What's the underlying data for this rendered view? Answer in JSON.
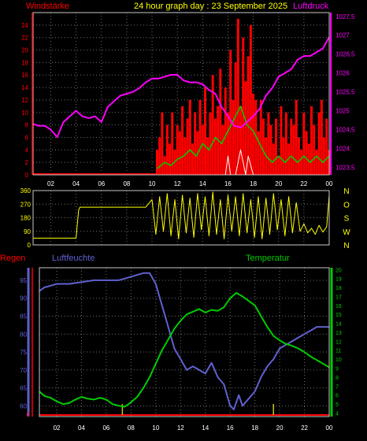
{
  "header": {
    "title": "24 hour graph day : 23 September 2025",
    "left_label": "Windstärke",
    "right_label": "Luftdruck"
  },
  "x_ticks": [
    "02",
    "04",
    "06",
    "08",
    "10",
    "12",
    "14",
    "16",
    "18",
    "20",
    "22",
    "00"
  ],
  "colors": {
    "background": "#000000",
    "frame": "#c8c8c8",
    "grid": "#707070",
    "wind": "#ff0000",
    "wind_avg": "#00d000",
    "wind_low": "#ffffff",
    "pressure": "#ff00ff",
    "direction": "#ffff00",
    "humidity": "#6060d0",
    "temperature": "#00cc00",
    "rain": "#ff0000",
    "rain_event": "#c8c800"
  },
  "chart_data": [
    {
      "type": "line",
      "name": "wind-pressure",
      "title": "24 hour graph day : 23 September 2025",
      "ylabel": "Windstärke",
      "y2label": "Luftdruck",
      "ylim": [
        0,
        26
      ],
      "y_ticks": [
        0,
        2,
        4,
        6,
        8,
        10,
        12,
        14,
        16,
        18,
        20,
        22,
        24
      ],
      "y2lim": [
        1023.3,
        1027.6
      ],
      "y2_ticks": [
        1023.5,
        1024,
        1024.5,
        1025,
        1025.5,
        1026,
        1026.5,
        1027,
        1027.5
      ],
      "y2_tick_labels": [
        "1023,5",
        "1024",
        "1024,5",
        "1025",
        "1025,5",
        "1026",
        "1026,5",
        "1027",
        "1027,5"
      ],
      "x_hours": [
        0.6,
        24.0
      ],
      "pressure_series": {
        "x": [
          0.6,
          1.0,
          1.5,
          2.0,
          2.5,
          3.0,
          3.5,
          4.0,
          4.5,
          5.0,
          5.5,
          6.0,
          6.5,
          7.0,
          7.5,
          8.0,
          8.5,
          9.0,
          9.5,
          10.0,
          10.5,
          11.0,
          11.5,
          12.0,
          12.5,
          13.0,
          13.5,
          14.0,
          14.5,
          15.0,
          15.5,
          16.0,
          16.5,
          17.0,
          17.5,
          18.0,
          18.5,
          19.0,
          19.5,
          20.0,
          20.5,
          21.0,
          21.5,
          22.0,
          22.5,
          23.0,
          23.5,
          24.0
        ],
        "y": [
          1024.65,
          1024.6,
          1024.6,
          1024.5,
          1024.3,
          1024.7,
          1024.85,
          1025.0,
          1024.85,
          1024.8,
          1024.85,
          1024.7,
          1025.1,
          1025.25,
          1025.4,
          1025.45,
          1025.5,
          1025.6,
          1025.75,
          1025.85,
          1025.85,
          1025.9,
          1025.95,
          1025.95,
          1025.8,
          1025.75,
          1025.75,
          1025.7,
          1025.55,
          1025.45,
          1025.1,
          1024.85,
          1024.6,
          1024.55,
          1024.7,
          1024.85,
          1025.05,
          1025.4,
          1025.6,
          1025.9,
          1026.0,
          1026.1,
          1026.35,
          1026.45,
          1026.45,
          1026.55,
          1026.65,
          1026.95
        ]
      },
      "wind_gust_series": {
        "x": [
          10.4,
          10.6,
          10.8,
          11.0,
          11.2,
          11.4,
          11.6,
          11.8,
          12.0,
          12.2,
          12.4,
          12.6,
          12.8,
          13.0,
          13.2,
          13.4,
          13.6,
          13.8,
          14.0,
          14.2,
          14.4,
          14.6,
          14.8,
          15.0,
          15.2,
          15.4,
          15.6,
          15.8,
          16.0,
          16.2,
          16.4,
          16.6,
          16.8,
          17.0,
          17.2,
          17.4,
          17.6,
          17.8,
          18.0,
          18.2,
          18.4,
          18.6,
          18.8,
          19.0,
          19.2,
          19.4,
          19.6,
          19.8,
          20.0,
          20.2,
          20.4,
          20.6,
          20.8,
          21.0,
          21.2,
          21.4,
          21.6,
          21.8,
          22.0,
          22.2,
          22.4,
          22.6,
          22.8,
          23.0,
          23.2,
          23.4,
          23.6,
          23.8,
          24.0
        ],
        "y": [
          4,
          6,
          10,
          3,
          8,
          5,
          10,
          4,
          8,
          7,
          11,
          6,
          9,
          12,
          5,
          10,
          7,
          12,
          8,
          14,
          6,
          10,
          16,
          9,
          11,
          17,
          8,
          14,
          10,
          20,
          12,
          18,
          25,
          11,
          22,
          15,
          19,
          24,
          13,
          12,
          7,
          12,
          9,
          6,
          10,
          8,
          5,
          9,
          3,
          11,
          6,
          10,
          5,
          9,
          8,
          12,
          6,
          4,
          10,
          7,
          5,
          11,
          8,
          4,
          10,
          12,
          6,
          9,
          4
        ]
      },
      "wind_avg_series": {
        "x": [
          10.4,
          11.0,
          11.5,
          12.0,
          12.5,
          13.0,
          13.5,
          14.0,
          14.5,
          15.0,
          15.5,
          16.0,
          16.5,
          17.0,
          17.5,
          18.0,
          18.5,
          19.0,
          19.5,
          20.0,
          20.5,
          21.0,
          21.5,
          22.0,
          22.5,
          23.0,
          23.5,
          24.0
        ],
        "y": [
          1,
          2,
          1.5,
          2.5,
          3,
          4,
          3,
          5,
          4,
          6,
          5,
          7,
          9,
          11,
          8,
          7,
          5,
          3,
          2,
          3,
          2,
          3,
          2,
          3,
          2,
          3,
          2,
          3
        ]
      },
      "wind_low_series": {
        "x": [
          10.4,
          12.0,
          14.0,
          15.8,
          16.0,
          16.2,
          16.6,
          16.8,
          17.0,
          17.4,
          17.6,
          18.0,
          18.5,
          20.0,
          24.0
        ],
        "y": [
          0,
          0,
          0,
          0,
          3,
          0,
          0,
          2,
          4,
          0,
          3,
          0,
          0,
          0,
          0
        ]
      }
    },
    {
      "type": "line",
      "name": "wind-direction",
      "ylim": [
        0,
        360
      ],
      "y_ticks": [
        0,
        90,
        180,
        270,
        360
      ],
      "y2_tick_labels": [
        "N",
        "W",
        "S",
        "O",
        "N"
      ],
      "x_hours": [
        0.6,
        24.0
      ],
      "direction_series": {
        "x": [
          0.6,
          2.0,
          4.0,
          4.2,
          4.3,
          6.0,
          8.0,
          9.5,
          9.8,
          10.0,
          10.3,
          10.6,
          10.9,
          11.2,
          11.5,
          11.8,
          12.1,
          12.4,
          12.7,
          13.0,
          13.3,
          13.6,
          13.9,
          14.2,
          14.5,
          14.8,
          15.1,
          15.4,
          15.7,
          16.0,
          16.3,
          16.6,
          16.9,
          17.2,
          17.5,
          17.8,
          18.1,
          18.4,
          18.7,
          19.0,
          19.3,
          19.6,
          19.9,
          20.2,
          20.5,
          20.8,
          21.1,
          21.4,
          21.7,
          22.0,
          22.3,
          22.6,
          22.9,
          23.2,
          23.5,
          23.8,
          24.0
        ],
        "y": [
          45,
          45,
          45,
          230,
          250,
          250,
          250,
          250,
          280,
          300,
          70,
          320,
          90,
          340,
          60,
          300,
          40,
          330,
          80,
          310,
          50,
          340,
          100,
          320,
          60,
          350,
          70,
          300,
          40,
          330,
          90,
          320,
          60,
          340,
          80,
          300,
          50,
          320,
          40,
          310,
          70,
          340,
          100,
          300,
          60,
          320,
          80,
          280,
          90,
          140,
          80,
          110,
          70,
          130,
          85,
          120,
          330
        ]
      }
    },
    {
      "type": "line",
      "name": "humidity-temperature",
      "ylabel": "Luftfeuchte",
      "y2label": "Temperatur",
      "rain_label": "Regen",
      "ylim": [
        57,
        98.5
      ],
      "y_ticks": [
        60,
        65,
        70,
        75,
        80,
        85,
        90,
        95
      ],
      "y2lim": [
        3.6,
        20.2
      ],
      "y2_ticks": [
        4,
        5,
        6,
        7,
        8,
        9,
        10,
        11,
        12,
        13,
        14,
        15,
        16,
        17,
        18,
        19,
        20
      ],
      "rain_value": 0,
      "x_hours": [
        0.6,
        24.0
      ],
      "humidity_series": {
        "x": [
          0.6,
          1.0,
          1.5,
          2.0,
          3.0,
          4.0,
          5.0,
          6.0,
          7.0,
          8.0,
          8.5,
          9.0,
          9.5,
          10.0,
          10.5,
          11.0,
          11.5,
          12.0,
          12.5,
          13.0,
          13.5,
          14.0,
          14.5,
          15.0,
          15.5,
          16.0,
          16.3,
          16.7,
          17.0,
          17.5,
          18.0,
          18.5,
          19.0,
          19.5,
          20.0,
          20.5,
          21.0,
          21.5,
          22.0,
          22.5,
          23.0,
          23.5,
          24.0
        ],
        "y": [
          92,
          93,
          93.5,
          94,
          94,
          94.5,
          95,
          95,
          95,
          96,
          96.5,
          97,
          97,
          94,
          88,
          82,
          76,
          73,
          70,
          71,
          70,
          69,
          72,
          68,
          66,
          60,
          59,
          63,
          60,
          62,
          64,
          68,
          71,
          73,
          76,
          77,
          78,
          79,
          80,
          81,
          82,
          82,
          82
        ]
      },
      "temperature_series": {
        "x": [
          0.6,
          1.0,
          1.5,
          2.0,
          2.5,
          3.0,
          3.5,
          4.0,
          4.5,
          5.0,
          5.5,
          6.0,
          6.5,
          7.0,
          7.5,
          8.0,
          8.5,
          9.0,
          9.5,
          10.0,
          10.5,
          11.0,
          11.5,
          12.0,
          12.5,
          13.0,
          13.5,
          14.0,
          14.5,
          15.0,
          15.5,
          16.0,
          16.5,
          17.0,
          17.5,
          18.0,
          18.5,
          19.0,
          19.5,
          20.0,
          20.5,
          21.0,
          21.5,
          22.0,
          22.5,
          23.0,
          23.5,
          24.0
        ],
        "y": [
          6.4,
          5.9,
          5.7,
          5.3,
          5.0,
          5.1,
          5.5,
          5.8,
          5.6,
          5.5,
          5.7,
          5.5,
          5.0,
          4.8,
          4.7,
          5.2,
          5.8,
          6.8,
          8.0,
          9.5,
          11.0,
          12.2,
          13.4,
          14.3,
          15.0,
          15.3,
          15.6,
          15.2,
          15.5,
          15.4,
          15.8,
          16.8,
          17.4,
          17.0,
          16.5,
          16.0,
          14.8,
          13.6,
          12.6,
          12.1,
          11.7,
          11.5,
          11.2,
          10.8,
          10.3,
          9.9,
          9.5,
          9.1
        ]
      },
      "rain_event_x": [
        7.3,
        19.5
      ]
    }
  ]
}
